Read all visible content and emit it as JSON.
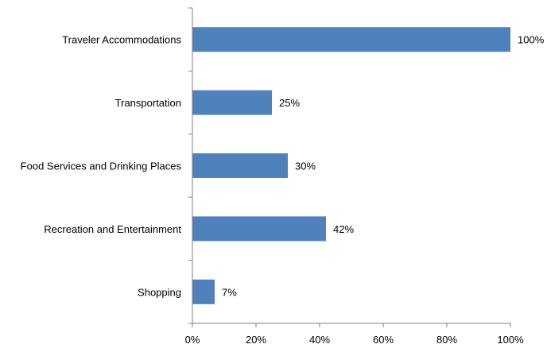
{
  "chart_data": {
    "type": "bar",
    "orientation": "horizontal",
    "categories": [
      "Traveler Accommodations",
      "Transportation",
      "Food Services and Drinking Places",
      "Recreation and Entertainment",
      "Shopping"
    ],
    "values": [
      100,
      25,
      30,
      42,
      7
    ],
    "data_labels": [
      "100%",
      "25%",
      "30%",
      "42%",
      "7%"
    ],
    "xlim": [
      0,
      100
    ],
    "x_ticks": [
      0,
      20,
      40,
      60,
      80,
      100
    ],
    "x_tick_labels": [
      "0%",
      "20%",
      "40%",
      "60%",
      "80%",
      "100%"
    ],
    "grid": false,
    "legend": "none",
    "bar_color": "#4F81BD"
  }
}
